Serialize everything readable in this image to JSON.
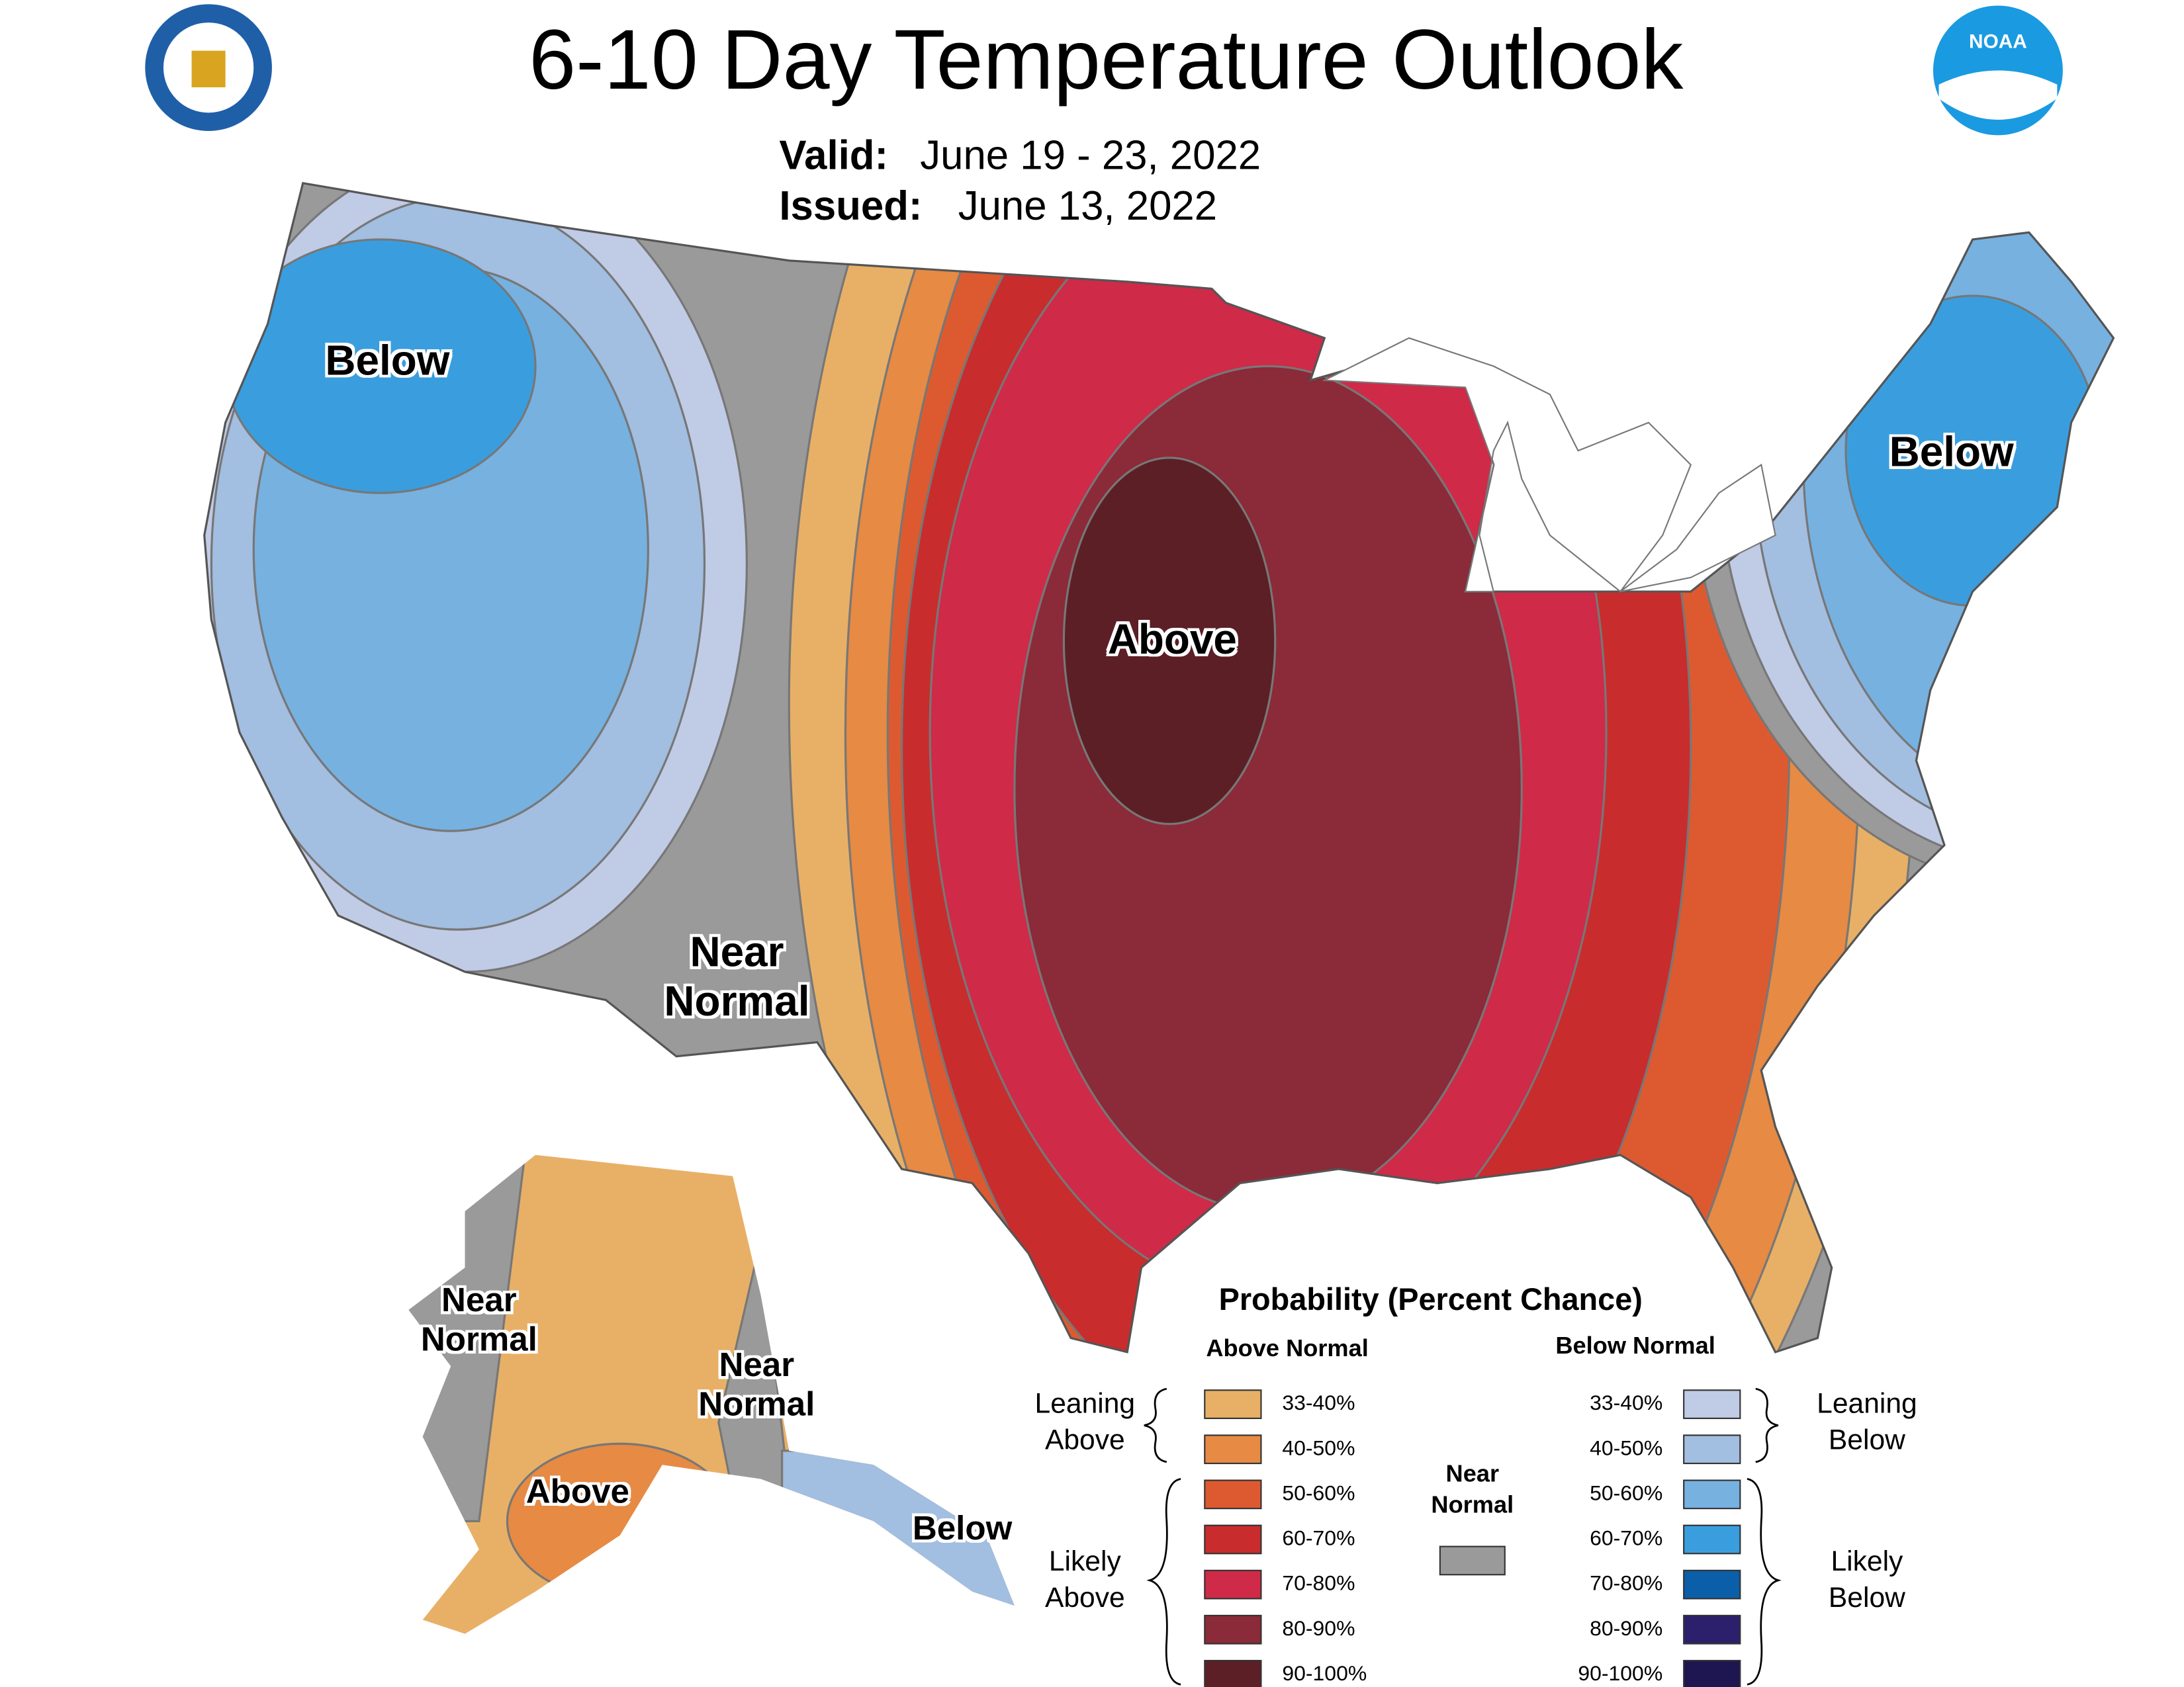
{
  "header": {
    "title": "6-10 Day Temperature Outlook",
    "valid_label": "Valid:",
    "valid_dates": "June 19 - 23, 2022",
    "issued_label": "Issued:",
    "issued_date": "June 13, 2022",
    "noaa_logo": "NOAA"
  },
  "map": {
    "labels": [
      "Below",
      "Below",
      "Above",
      "Near Normal",
      "Near Normal",
      "Near Normal",
      "Above",
      "Below"
    ]
  },
  "legend": {
    "title": "Probability (Percent Chance)",
    "above_header": "Above Normal",
    "below_header": "Below Normal",
    "leaning_above": "Leaning Above",
    "likely_above": "Likely Above",
    "leaning_below": "Leaning Below",
    "likely_below": "Likely Below",
    "near_normal": {
      "label": "Near Normal",
      "color": "#9a9a9a"
    },
    "above": [
      {
        "label": "33-40%",
        "color": "#e8b066"
      },
      {
        "label": "40-50%",
        "color": "#e68a44"
      },
      {
        "label": "50-60%",
        "color": "#dd5a30"
      },
      {
        "label": "60-70%",
        "color": "#c92c2c"
      },
      {
        "label": "70-80%",
        "color": "#cf2a48"
      },
      {
        "label": "80-90%",
        "color": "#8b2a38"
      },
      {
        "label": "90-100%",
        "color": "#5c1f26"
      }
    ],
    "below": [
      {
        "label": "33-40%",
        "color": "#c0cbe6"
      },
      {
        "label": "40-50%",
        "color": "#a2bee0"
      },
      {
        "label": "50-60%",
        "color": "#76b1e0"
      },
      {
        "label": "60-70%",
        "color": "#3a9ede"
      },
      {
        "label": "70-80%",
        "color": "#0b5fa8"
      },
      {
        "label": "80-90%",
        "color": "#2c1f6b"
      },
      {
        "label": "90-100%",
        "color": "#1d1650"
      }
    ]
  }
}
